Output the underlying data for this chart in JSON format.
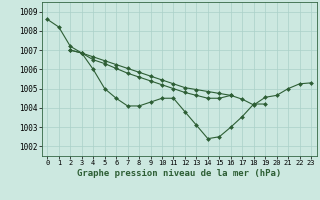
{
  "background_color": "#cce8e0",
  "plot_bg_color": "#cce8e0",
  "grid_color": "#aad0c8",
  "line_color": "#2d5e35",
  "marker_color": "#2d5e35",
  "xlabel": "Graphe pression niveau de la mer (hPa)",
  "ylim": [
    1001.5,
    1009.5
  ],
  "xlim": [
    -0.5,
    23.5
  ],
  "yticks": [
    1002,
    1003,
    1004,
    1005,
    1006,
    1007,
    1008,
    1009
  ],
  "xticks": [
    0,
    1,
    2,
    3,
    4,
    5,
    6,
    7,
    8,
    9,
    10,
    11,
    12,
    13,
    14,
    15,
    16,
    17,
    18,
    19,
    20,
    21,
    22,
    23
  ],
  "line_a_x": [
    0,
    1,
    2,
    3,
    4,
    5,
    6,
    7,
    8,
    9,
    10,
    11,
    12,
    13,
    14,
    15,
    16,
    17,
    18,
    19
  ],
  "line_a_y": [
    1008.6,
    1008.2,
    1007.2,
    1006.85,
    1006.0,
    1005.0,
    1004.5,
    1004.1,
    1004.1,
    1004.3,
    1004.5,
    1004.5,
    1003.8,
    1003.1,
    1002.4,
    1002.5,
    1003.0,
    1003.55,
    1004.2,
    1004.2
  ],
  "line_b_x": [
    2,
    3,
    4,
    5,
    6,
    7,
    8,
    9,
    10,
    11,
    12,
    13,
    14,
    15,
    16,
    17,
    18,
    19,
    20,
    21,
    22,
    23
  ],
  "line_b_y": [
    1007.0,
    1006.85,
    1006.65,
    1006.45,
    1006.25,
    1006.05,
    1005.85,
    1005.65,
    1005.45,
    1005.25,
    1005.05,
    1004.95,
    1004.85,
    1004.75,
    1004.65,
    1004.45,
    1004.15,
    1004.55,
    1004.65,
    1005.0,
    1005.25,
    1005.3
  ],
  "line_c_x": [
    2,
    3,
    4,
    5,
    6,
    7,
    8,
    9,
    10,
    11,
    12,
    13,
    14,
    15,
    16
  ],
  "line_c_y": [
    1007.0,
    1006.85,
    1006.5,
    1006.3,
    1006.05,
    1005.8,
    1005.6,
    1005.4,
    1005.2,
    1005.0,
    1004.8,
    1004.65,
    1004.5,
    1004.5,
    1004.65
  ]
}
